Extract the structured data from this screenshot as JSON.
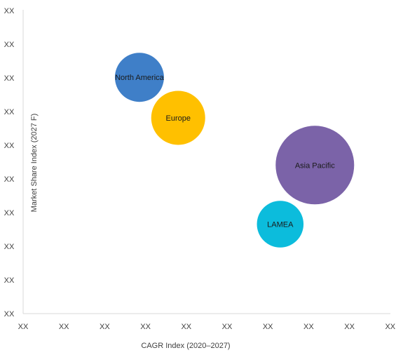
{
  "chart_data": {
    "type": "scatter",
    "subtype": "bubble",
    "xlabel": "CAGR Index (2020–2027)",
    "ylabel": "Market Share Index (2027 F)",
    "x_tick_labels": [
      "XX",
      "XX",
      "XX",
      "XX",
      "XX",
      "XX",
      "XX",
      "XX",
      "XX",
      "XX"
    ],
    "y_tick_labels": [
      "XX",
      "XX",
      "XX",
      "XX",
      "XX",
      "XX",
      "XX",
      "XX",
      "XX",
      "XX"
    ],
    "xlim": [
      0,
      9
    ],
    "ylim": [
      0,
      9
    ],
    "grid": false,
    "legend": "none",
    "series": [
      {
        "name": "North America",
        "x": 2.85,
        "y": 7.0,
        "size": 1.0,
        "color": "#3F7FC8"
      },
      {
        "name": "Europe",
        "x": 3.8,
        "y": 5.8,
        "size": 1.1,
        "color": "#FFC000"
      },
      {
        "name": "Asia Pacific",
        "x": 7.15,
        "y": 4.4,
        "size": 1.6,
        "color": "#7B63A8"
      },
      {
        "name": "LAMEA",
        "x": 6.3,
        "y": 2.65,
        "size": 0.95,
        "color": "#0CBCDC"
      }
    ]
  }
}
